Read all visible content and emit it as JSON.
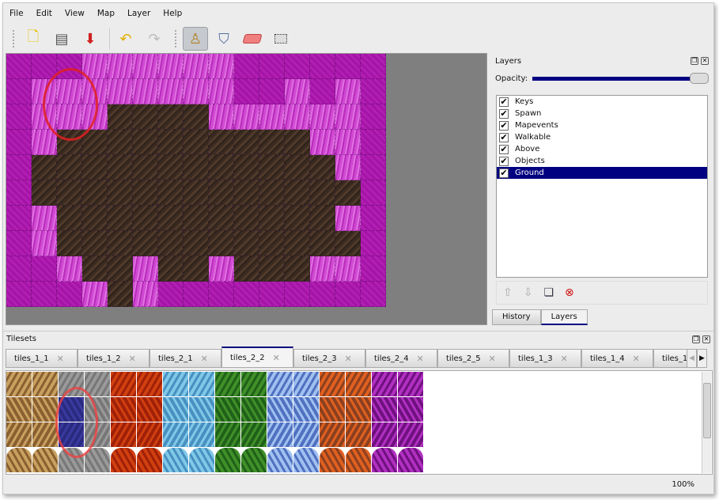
{
  "menu": [
    "File",
    "Edit",
    "View",
    "Map",
    "Layer",
    "Help"
  ],
  "toolbar": {
    "new": "new-file-icon",
    "open": "open-icon",
    "save": "save-icon",
    "undo": "undo-icon",
    "redo": "redo-icon",
    "stamp": "stamp-brush-icon",
    "fill": "bucket-fill-icon",
    "eraser": "eraser-icon",
    "select": "rect-select-icon"
  },
  "layers_panel": {
    "title": "Layers",
    "opacity_label": "Opacity:",
    "opacity": 1.0,
    "layers": [
      {
        "name": "Keys",
        "visible": true
      },
      {
        "name": "Spawn",
        "visible": true
      },
      {
        "name": "Mapevents",
        "visible": true
      },
      {
        "name": "Walkable",
        "visible": true
      },
      {
        "name": "Above",
        "visible": true
      },
      {
        "name": "Objects",
        "visible": true
      },
      {
        "name": "Ground",
        "visible": true,
        "selected": true
      }
    ],
    "tabs": [
      "History",
      "Layers"
    ],
    "active_tab": "Layers"
  },
  "tilesets": {
    "title": "Tilesets",
    "tabs": [
      "tiles_1_1",
      "tiles_1_2",
      "tiles_2_1",
      "tiles_2_2",
      "tiles_2_3",
      "tiles_2_4",
      "tiles_2_5",
      "tiles_1_3",
      "tiles_1_4",
      "tiles_1_"
    ],
    "active": "tiles_2_2"
  },
  "status": {
    "zoom": "100%"
  },
  "colors": {
    "selection": "#000080",
    "magenta": "#a414a6",
    "dirt": "#3a2a20",
    "annotation": "#e02020"
  }
}
